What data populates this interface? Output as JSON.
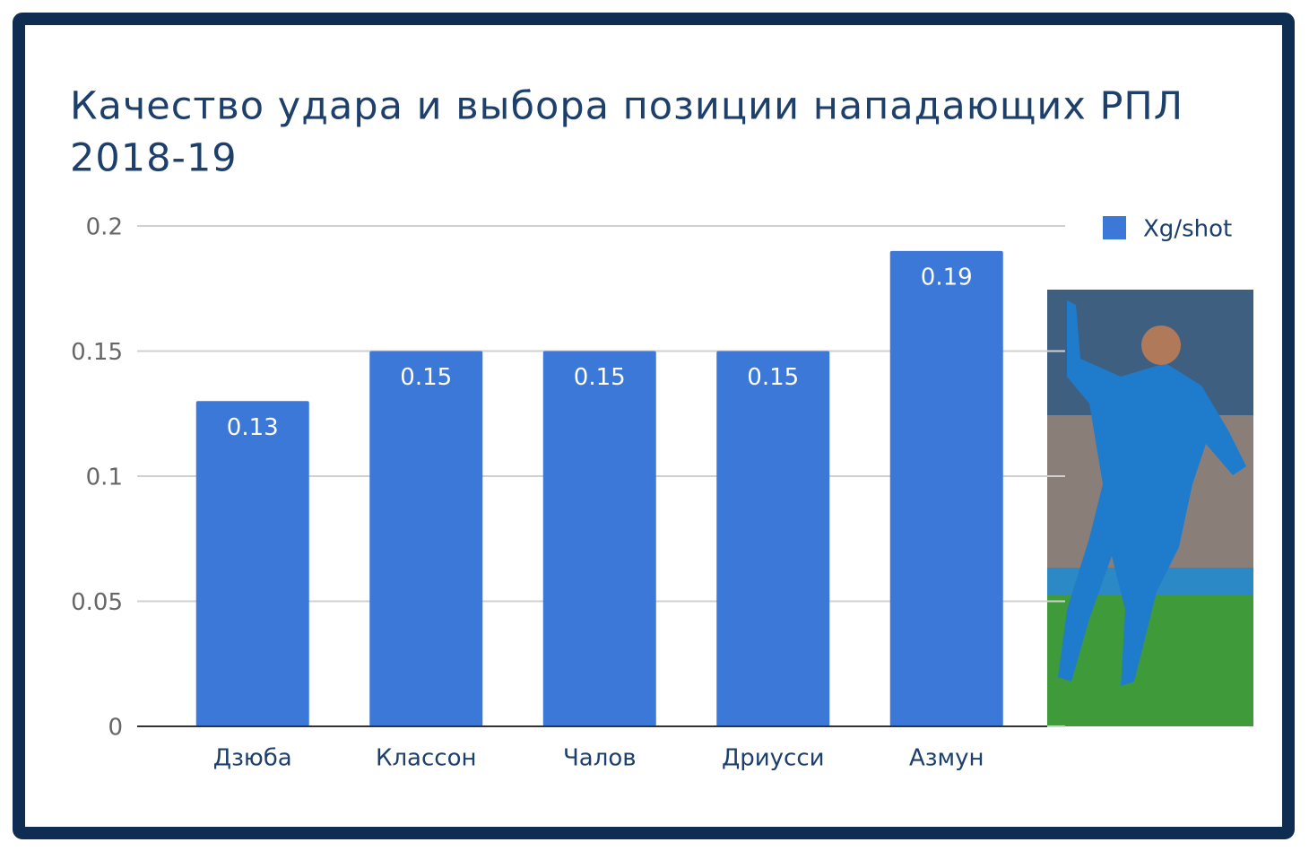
{
  "chart_data": {
    "type": "bar",
    "title": [
      "Качество удара и выбора позиции нападающих РПЛ",
      "2018-19"
    ],
    "categories": [
      "Дзюба",
      "Классон",
      "Чалов",
      "Дриусси",
      "Азмун"
    ],
    "series": [
      {
        "name": "Xg/shot",
        "color": "#3c78d8",
        "values": [
          0.13,
          0.15,
          0.15,
          0.15,
          0.19
        ]
      }
    ],
    "ylim": [
      0,
      0.2
    ],
    "yticks": [
      0,
      0.05,
      0.1,
      0.15,
      0.2
    ],
    "grid": true,
    "legend": "top-right",
    "data_labels": true
  }
}
